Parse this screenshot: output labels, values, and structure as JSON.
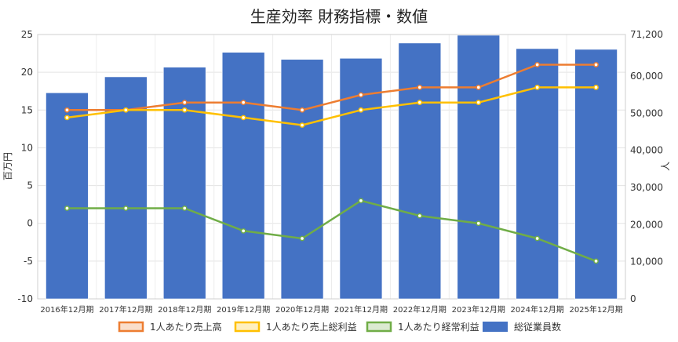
{
  "chart_data": {
    "type": "bar",
    "title": "生産効率 財務指標・数値",
    "categories": [
      "2016年12月期",
      "2017年12月期",
      "2018年12月期",
      "2019年12月期",
      "2020年12月期",
      "2021年12月期",
      "2022年12月期",
      "2023年12月期",
      "2024年12月期",
      "2025年12月期"
    ],
    "y_left": {
      "label": "百万円",
      "min": -10,
      "max": 25,
      "ticks": [
        "-10",
        "-5",
        "0",
        "5",
        "10",
        "15",
        "20",
        "25"
      ]
    },
    "y_right": {
      "label": "人",
      "min": 0,
      "max": 71200,
      "ticks": [
        "0",
        "10,000",
        "20,000",
        "30,000",
        "40,000",
        "50,000",
        "60,000",
        "71,200"
      ]
    },
    "bar_series": {
      "name": "総従業員数",
      "color": "#4472C4",
      "axis": "right",
      "values": [
        55500,
        59800,
        62400,
        66400,
        64500,
        64800,
        68900,
        71000,
        67400,
        67200
      ]
    },
    "line_series": [
      {
        "name": "1人あたり売上高",
        "color": "#ED7D31",
        "axis": "left",
        "values": [
          15,
          15,
          16,
          16,
          15,
          17,
          18,
          18,
          21,
          21
        ]
      },
      {
        "name": "1人あたり売上総利益",
        "color": "#FFC000",
        "axis": "left",
        "values": [
          14,
          15,
          15,
          14,
          13,
          15,
          16,
          16,
          18,
          18
        ]
      },
      {
        "name": "1人あたり経常利益",
        "color": "#70AD47",
        "axis": "left",
        "values": [
          2,
          2,
          2,
          -1,
          -2,
          3,
          1,
          0,
          -2,
          -5
        ]
      }
    ],
    "legend_position": "bottom",
    "grid": true
  }
}
